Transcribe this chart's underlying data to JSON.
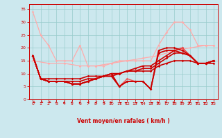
{
  "background_color": "#cce8ee",
  "grid_color": "#99cccc",
  "xlabel": "Vent moyen/en rafales ( km/h )",
  "xlim": [
    -0.5,
    23.5
  ],
  "ylim": [
    0,
    37
  ],
  "yticks": [
    0,
    5,
    10,
    15,
    20,
    25,
    30,
    35
  ],
  "xticks": [
    0,
    1,
    2,
    3,
    4,
    5,
    6,
    7,
    8,
    9,
    10,
    11,
    12,
    13,
    14,
    15,
    16,
    17,
    18,
    19,
    20,
    21,
    22,
    23
  ],
  "series": [
    {
      "x": [
        0,
        1,
        2,
        3,
        4,
        5,
        6,
        7,
        8,
        9,
        10,
        11,
        12,
        13,
        14,
        15,
        16,
        17,
        18,
        19,
        20,
        21,
        22,
        23
      ],
      "y": [
        34,
        25,
        21,
        15,
        15,
        15,
        21,
        13,
        13,
        13,
        14,
        15,
        15,
        15,
        15,
        15,
        21,
        26,
        30,
        30,
        27,
        21,
        21,
        21
      ],
      "color": "#ffaaaa",
      "lw": 0.9
    },
    {
      "x": [
        0,
        2,
        4,
        6,
        8,
        10,
        12,
        14,
        16,
        18,
        20,
        22,
        23
      ],
      "y": [
        15,
        14,
        14,
        13,
        13,
        14,
        15,
        16,
        17,
        19,
        20,
        21,
        21
      ],
      "color": "#ffaaaa",
      "lw": 0.9
    },
    {
      "x": [
        0,
        1,
        2,
        3,
        4,
        5,
        6,
        7,
        8,
        9,
        10,
        11,
        12,
        13,
        14,
        15,
        16,
        17,
        18,
        19,
        20,
        21,
        22,
        23
      ],
      "y": [
        17,
        8,
        8,
        8,
        8,
        8,
        8,
        9,
        9,
        9,
        10,
        10,
        11,
        11,
        11,
        11,
        13,
        14,
        15,
        15,
        15,
        14,
        14,
        15
      ],
      "color": "#cc0000",
      "lw": 1.2
    },
    {
      "x": [
        0,
        1,
        2,
        3,
        4,
        5,
        6,
        7,
        8,
        9,
        10,
        11,
        12,
        13,
        14,
        15,
        16,
        17,
        18,
        19,
        20,
        21,
        22,
        23
      ],
      "y": [
        17,
        8,
        7,
        7,
        7,
        7,
        7,
        8,
        8,
        9,
        9,
        10,
        11,
        11,
        12,
        12,
        14,
        16,
        18,
        18,
        17,
        14,
        14,
        14
      ],
      "color": "#cc0000",
      "lw": 1.2
    },
    {
      "x": [
        0,
        1,
        2,
        3,
        4,
        5,
        6,
        7,
        8,
        9,
        10,
        11,
        12,
        13,
        14,
        15,
        16,
        17,
        18,
        19,
        20,
        21,
        22,
        23
      ],
      "y": [
        17,
        8,
        7,
        7,
        7,
        6,
        6,
        7,
        8,
        9,
        10,
        10,
        11,
        12,
        13,
        13,
        15,
        17,
        19,
        20,
        17,
        14,
        14,
        15
      ],
      "color": "#cc0000",
      "lw": 1.2
    },
    {
      "x": [
        0,
        1,
        2,
        3,
        4,
        5,
        6,
        7,
        8,
        9,
        10,
        11,
        12,
        13,
        14,
        15,
        16,
        17,
        18,
        19,
        20,
        21,
        22,
        23
      ],
      "y": [
        17,
        8,
        7,
        7,
        7,
        6,
        6,
        7,
        8,
        9,
        10,
        5,
        8,
        7,
        7,
        4,
        18,
        19,
        19,
        20,
        17,
        14,
        14,
        15
      ],
      "color": "#ee5555",
      "lw": 1.0
    },
    {
      "x": [
        0,
        1,
        2,
        3,
        4,
        5,
        6,
        7,
        8,
        9,
        10,
        11,
        12,
        13,
        14,
        15,
        16,
        17,
        18,
        19,
        20,
        21,
        22,
        23
      ],
      "y": [
        17,
        8,
        7,
        7,
        7,
        6,
        6,
        7,
        8,
        9,
        10,
        5,
        7,
        7,
        7,
        4,
        19,
        20,
        20,
        19,
        17,
        14,
        14,
        15
      ],
      "color": "#cc0000",
      "lw": 1.2
    },
    {
      "x": [
        0,
        1,
        2,
        3,
        4,
        5,
        6,
        7,
        8,
        9,
        10,
        11,
        12,
        13,
        14,
        15,
        16,
        17,
        18,
        19,
        20,
        21,
        22,
        23
      ],
      "y": [
        17,
        8,
        7,
        7,
        7,
        6,
        6,
        7,
        8,
        9,
        9,
        5,
        7,
        7,
        7,
        4,
        18,
        19,
        19,
        18,
        17,
        14,
        14,
        15
      ],
      "color": "#cc0000",
      "lw": 1.2
    }
  ],
  "arrow_angles_deg": [
    225,
    225,
    225,
    210,
    210,
    210,
    210,
    270,
    270,
    270,
    90,
    315,
    45,
    315,
    45,
    315,
    90,
    90,
    90,
    90,
    90,
    45,
    45,
    45
  ]
}
